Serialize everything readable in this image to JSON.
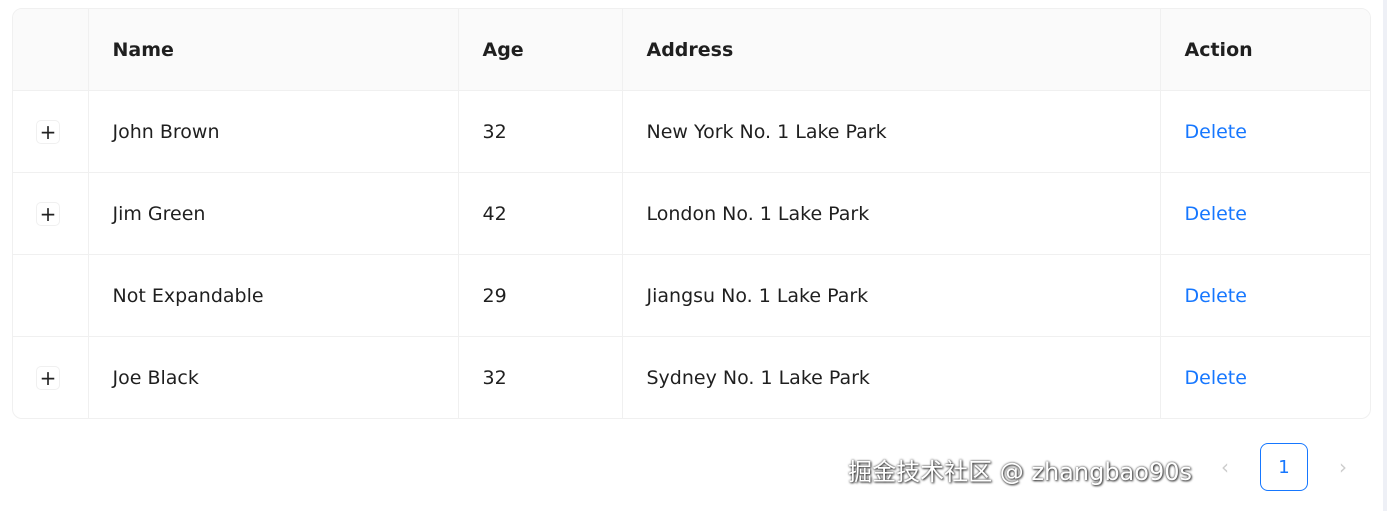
{
  "table": {
    "columns": [
      "",
      "Name",
      "Age",
      "Address",
      "Action"
    ],
    "rows": [
      {
        "expandable": true,
        "name": "John Brown",
        "age": "32",
        "address": "New York No. 1 Lake Park",
        "action": "Delete"
      },
      {
        "expandable": true,
        "name": "Jim Green",
        "age": "42",
        "address": "London No. 1 Lake Park",
        "action": "Delete"
      },
      {
        "expandable": false,
        "name": "Not Expandable",
        "age": "29",
        "address": "Jiangsu No. 1 Lake Park",
        "action": "Delete"
      },
      {
        "expandable": true,
        "name": "Joe Black",
        "age": "32",
        "address": "Sydney No. 1 Lake Park",
        "action": "Delete"
      }
    ],
    "expand_icon": "+"
  },
  "pagination": {
    "prev": "‹",
    "current": "1",
    "next": "›"
  },
  "watermark": "掘金技术社区 @ zhangbao90s",
  "colors": {
    "accent": "#1677ff",
    "header_bg": "#fafafa",
    "border": "#f0f0f0"
  }
}
